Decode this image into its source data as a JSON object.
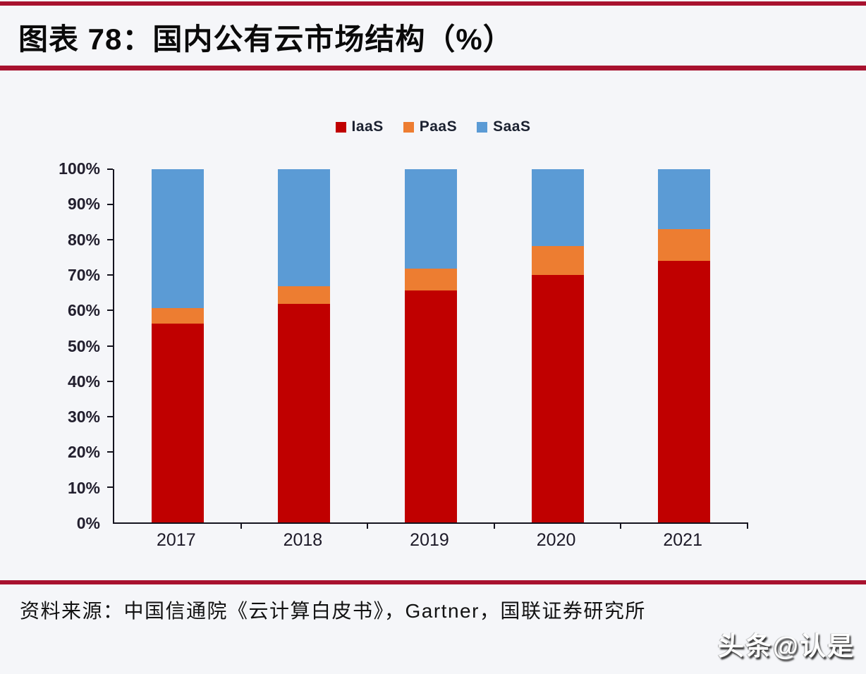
{
  "page": {
    "title": "图表 78：国内公有云市场结构（%）",
    "source": "资料来源：中国信通院《云计算白皮书》，Gartner，国联证券研究所",
    "watermark": "头条@认是",
    "colors": {
      "rule_red": "#a8122f",
      "background": "#f5f6f9",
      "axis": "#15141f",
      "iaas_red": "#c00000",
      "paas_orange": "#ed7d31",
      "saas_blue": "#5b9bd5"
    }
  },
  "chart_data": {
    "type": "bar",
    "stacked": true,
    "title": "国内公有云市场结构（%）",
    "categories": [
      "2017",
      "2018",
      "2019",
      "2020",
      "2021"
    ],
    "series": [
      {
        "name": "IaaS",
        "color": "#c00000",
        "values": [
          56.2,
          61.8,
          65.7,
          70.1,
          74.0
        ]
      },
      {
        "name": "PaaS",
        "color": "#ed7d31",
        "values": [
          4.4,
          5.0,
          6.1,
          8.1,
          9.0
        ]
      },
      {
        "name": "SaaS",
        "color": "#5b9bd5",
        "values": [
          39.4,
          33.2,
          28.2,
          21.8,
          17.0
        ]
      }
    ],
    "xlabel": "",
    "ylabel": "",
    "ylim": [
      0,
      100
    ],
    "y_ticks": [
      "0%",
      "10%",
      "20%",
      "30%",
      "40%",
      "50%",
      "60%",
      "70%",
      "80%",
      "90%",
      "100%"
    ],
    "legend_position": "top-center",
    "grid": false
  }
}
